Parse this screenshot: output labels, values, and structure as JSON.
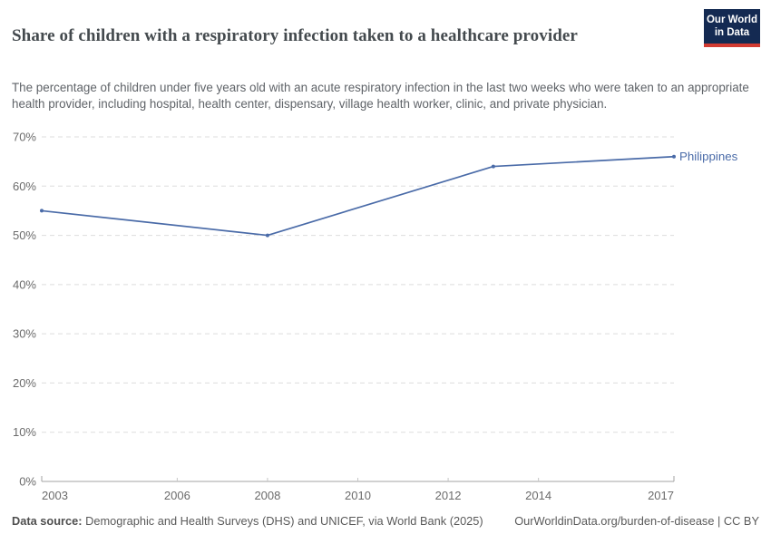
{
  "header": {
    "title": "Share of children with a respiratory infection taken to a healthcare provider",
    "subtitle": "The percentage of children under five years old with an acute respiratory infection in the last two weeks who were taken to an appropriate health provider, including hospital, health center, dispensary, village health worker, clinic, and private physician.",
    "logo_line1": "Our World",
    "logo_line2": "in Data"
  },
  "chart_data": {
    "type": "line",
    "title": "Share of children with a respiratory infection taken to a healthcare provider",
    "series": [
      {
        "name": "Philippines",
        "color": "#4a6ba8",
        "x": [
          2003,
          2008,
          2013,
          2017
        ],
        "values": [
          55,
          50,
          64,
          66
        ]
      }
    ],
    "x_ticks": [
      2003,
      2006,
      2008,
      2010,
      2012,
      2014,
      2017
    ],
    "y_ticks": [
      0,
      10,
      20,
      30,
      40,
      50,
      60,
      70
    ],
    "xlim": [
      2003,
      2017
    ],
    "ylim": [
      0,
      70
    ],
    "y_tick_suffix": "%",
    "grid": "horizontal-dashed",
    "legend_position": "end-of-line-label"
  },
  "footer": {
    "source_label": "Data source:",
    "source_text": " Demographic and Health Surveys (DHS) and UNICEF, via World Bank (2025)",
    "link_text": "OurWorldinData.org/burden-of-disease | CC BY"
  },
  "colors": {
    "line": "#4a6ba8",
    "series_label": "#4a6ba8",
    "logo_bg": "#142a52",
    "logo_red": "#d23b32",
    "gridline": "#dddddd",
    "axis_line": "#a3a3a3",
    "axis_tick": "#c6c6c6",
    "tick_label": "#6b6b6b"
  }
}
